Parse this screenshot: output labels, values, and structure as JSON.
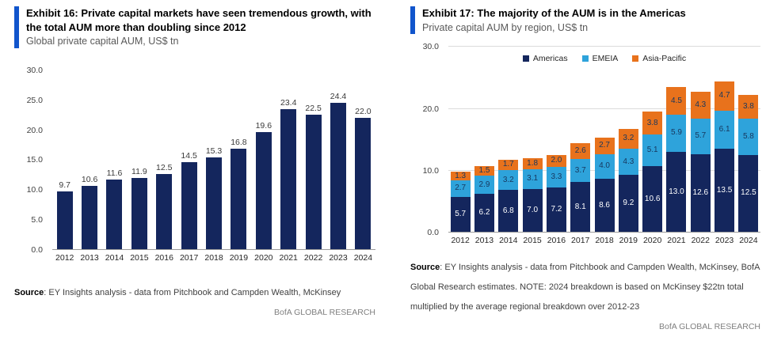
{
  "brand": {
    "accent_color": "#1155CC",
    "footer": "BofA GLOBAL RESEARCH"
  },
  "left_panel": {
    "title": "Exhibit 16: Private capital markets have seen tremendous growth, with the total AUM more than doubling since 2012",
    "subtitle": "Global private capital AUM, US$ tn",
    "source_label": "Source",
    "source_text": ": EY Insights analysis - data from Pitchbook and Campden Wealth, McKinsey",
    "footer": "BofA GLOBAL RESEARCH"
  },
  "right_panel": {
    "title": "Exhibit 17: The majority of the AUM is in the Americas",
    "subtitle": "Private capital AUM by region, US$ tn",
    "source_label": "Source",
    "source_text": ": EY Insights analysis - data from Pitchbook and Campden Wealth, McKinsey, BofA Global Research estimates. NOTE: 2024 breakdown is based on McKinsey $22tn total multiplied by the average regional breakdown over 2012-23",
    "footer": "BofA GLOBAL RESEARCH"
  },
  "chart_data": [
    {
      "type": "bar",
      "title": "Global private capital AUM, US$ tn",
      "categories": [
        "2012",
        "2013",
        "2014",
        "2015",
        "2016",
        "2017",
        "2018",
        "2019",
        "2020",
        "2021",
        "2022",
        "2023",
        "2024"
      ],
      "values": [
        9.7,
        10.6,
        11.6,
        11.9,
        12.5,
        14.5,
        15.3,
        16.8,
        19.6,
        23.4,
        22.5,
        24.4,
        22.0
      ],
      "bar_color": "#14265D",
      "label_color": "#3a3a3a",
      "xlabel": "",
      "ylabel": "",
      "ylim": [
        0,
        30
      ],
      "yticks": [
        0.0,
        5.0,
        10.0,
        15.0,
        20.0,
        25.0,
        30.0
      ],
      "grid": false,
      "legend": false
    },
    {
      "type": "bar",
      "stacked": true,
      "title": "Private capital AUM by region, US$ tn",
      "categories": [
        "2012",
        "2013",
        "2014",
        "2015",
        "2016",
        "2017",
        "2018",
        "2019",
        "2020",
        "2021",
        "2022",
        "2023",
        "2024"
      ],
      "series": [
        {
          "name": "Americas",
          "color": "#14265D",
          "label_color": "#ffffff",
          "values": [
            5.7,
            6.2,
            6.8,
            7.0,
            7.2,
            8.1,
            8.6,
            9.2,
            10.6,
            13.0,
            12.6,
            13.5,
            12.5
          ]
        },
        {
          "name": "EMEIA",
          "color": "#2EA3DB",
          "label_color": "#17375E",
          "values": [
            2.7,
            2.9,
            3.2,
            3.1,
            3.3,
            3.7,
            4.0,
            4.3,
            5.1,
            5.9,
            5.7,
            6.1,
            5.8
          ]
        },
        {
          "name": "Asia-Pacific",
          "color": "#E8721C",
          "label_color": "#17375E",
          "values": [
            1.3,
            1.5,
            1.7,
            1.8,
            2.0,
            2.6,
            2.7,
            3.2,
            3.8,
            4.5,
            4.3,
            4.7,
            3.8
          ]
        }
      ],
      "xlabel": "",
      "ylabel": "",
      "ylim": [
        0,
        30
      ],
      "yticks": [
        0.0,
        10.0,
        20.0,
        30.0
      ],
      "grid": true,
      "legend": true,
      "legend_position": "top-inside"
    }
  ]
}
